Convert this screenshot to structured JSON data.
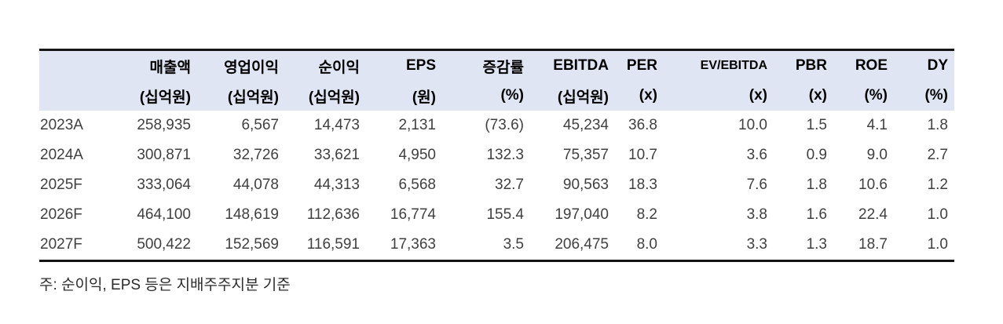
{
  "colors": {
    "header_bg": "#dfe5f3",
    "rule": "#151515",
    "header_text": "#000000",
    "data_text": "#404040"
  },
  "chart_data": {
    "type": "table",
    "columns": [
      {
        "label": "",
        "unit": ""
      },
      {
        "label": "매출액",
        "unit": "(십억원)"
      },
      {
        "label": "영업이익",
        "unit": "(십억원)"
      },
      {
        "label": "순이익",
        "unit": "(십억원)"
      },
      {
        "label": "EPS",
        "unit": "(원)"
      },
      {
        "label": "증감률",
        "unit": "(%)"
      },
      {
        "label": "EBITDA",
        "unit": "(십억원)"
      },
      {
        "label": "PER",
        "unit": "(x)"
      },
      {
        "label": "EV/EBITDA",
        "unit": "(x)"
      },
      {
        "label": "PBR",
        "unit": "(x)"
      },
      {
        "label": "ROE",
        "unit": "(%)"
      },
      {
        "label": "DY",
        "unit": "(%)"
      }
    ],
    "rows": [
      {
        "year": "2023A",
        "values": [
          "258,935",
          "6,567",
          "14,473",
          "2,131",
          "(73.6)",
          "45,234",
          "36.8",
          "10.0",
          "1.5",
          "4.1",
          "1.8"
        ]
      },
      {
        "year": "2024A",
        "values": [
          "300,871",
          "32,726",
          "33,621",
          "4,950",
          "132.3",
          "75,357",
          "10.7",
          "3.6",
          "0.9",
          "9.0",
          "2.7"
        ]
      },
      {
        "year": "2025F",
        "values": [
          "333,064",
          "44,078",
          "44,313",
          "6,568",
          "32.7",
          "90,563",
          "18.3",
          "7.6",
          "1.8",
          "10.6",
          "1.2"
        ]
      },
      {
        "year": "2026F",
        "values": [
          "464,100",
          "148,619",
          "112,636",
          "16,774",
          "155.4",
          "197,040",
          "8.2",
          "3.8",
          "1.6",
          "22.4",
          "1.0"
        ]
      },
      {
        "year": "2027F",
        "values": [
          "500,422",
          "152,569",
          "116,591",
          "17,363",
          "3.5",
          "206,475",
          "8.0",
          "3.3",
          "1.3",
          "18.7",
          "1.0"
        ]
      }
    ],
    "footnote": "주: 순이익, EPS 등은 지배주주지분 기준"
  }
}
